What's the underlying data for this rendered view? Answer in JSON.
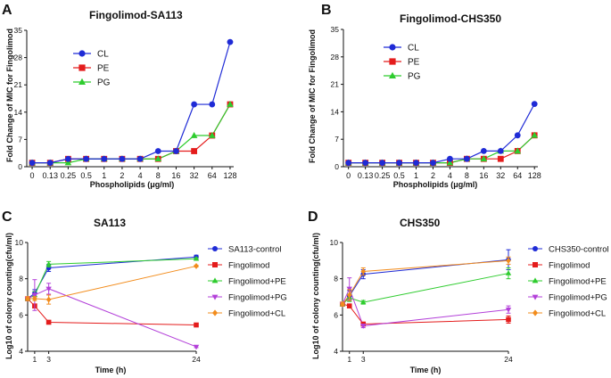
{
  "chart_data": [
    {
      "panel": "A",
      "type": "line",
      "title": "Fingolimod-SA113",
      "xlabel": "Phospholipids (μg/ml)",
      "ylabel": "Fold Change of MIC for Fingolimod",
      "categories": [
        "0",
        "0.13",
        "0.25",
        "0.5",
        "1",
        "2",
        "4",
        "8",
        "16",
        "32",
        "64",
        "128"
      ],
      "yticks": [
        0,
        7,
        14,
        21,
        28,
        35
      ],
      "ylim": [
        0,
        35
      ],
      "legend": "top-left",
      "series": [
        {
          "name": "CL",
          "color": "#1f2bd6",
          "marker": "circle",
          "values": [
            1,
            1,
            2,
            2,
            2,
            2,
            2,
            4,
            4,
            16,
            16,
            32
          ]
        },
        {
          "name": "PE",
          "color": "#e41c1c",
          "marker": "square",
          "values": [
            1,
            1,
            2,
            2,
            2,
            2,
            2,
            2,
            4,
            4,
            8,
            16
          ]
        },
        {
          "name": "PG",
          "color": "#2ecc2e",
          "marker": "triangle",
          "values": [
            1,
            1,
            1,
            2,
            2,
            2,
            2,
            2,
            4,
            8,
            8,
            16
          ]
        }
      ]
    },
    {
      "panel": "B",
      "type": "line",
      "title": "Fingolimod-CHS350",
      "xlabel": "Phospholipids (μg/ml)",
      "ylabel": "Fold Change of MIC for Fingolimod",
      "categories": [
        "0",
        "0.13",
        "0.25",
        "0.5",
        "1",
        "2",
        "4",
        "8",
        "16",
        "32",
        "64",
        "128"
      ],
      "yticks": [
        0,
        7,
        14,
        21,
        28,
        35
      ],
      "ylim": [
        0,
        35
      ],
      "legend": "top-left",
      "series": [
        {
          "name": "CL",
          "color": "#1f2bd6",
          "marker": "circle",
          "values": [
            1,
            1,
            1,
            1,
            1,
            1,
            2,
            2,
            4,
            4,
            8,
            16
          ]
        },
        {
          "name": "PE",
          "color": "#e41c1c",
          "marker": "square",
          "values": [
            1,
            1,
            1,
            1,
            1,
            1,
            1,
            2,
            2,
            2,
            4,
            8
          ]
        },
        {
          "name": "PG",
          "color": "#2ecc2e",
          "marker": "triangle",
          "values": [
            1,
            1,
            1,
            1,
            1,
            1,
            1,
            2,
            2,
            4,
            4,
            8
          ]
        }
      ]
    },
    {
      "panel": "C",
      "type": "line",
      "title": "SA113",
      "xlabel": "Time (h)",
      "ylabel": "Log10 of colony counting(cfu/ml)",
      "xticks": [
        1,
        3,
        24
      ],
      "xlim": [
        0,
        24
      ],
      "yticks": [
        4,
        6,
        8,
        10
      ],
      "ylim": [
        4,
        10
      ],
      "legend": "right",
      "series": [
        {
          "name": "SA113-control",
          "color": "#1f2bd6",
          "marker": "circle",
          "x": [
            0,
            1,
            3,
            24
          ],
          "values": [
            6.9,
            7.2,
            8.6,
            9.2
          ],
          "err": [
            0.1,
            0.2,
            0.2,
            0.1
          ]
        },
        {
          "name": "Fingolimod",
          "color": "#e41c1c",
          "marker": "square",
          "x": [
            0,
            1,
            3,
            24
          ],
          "values": [
            6.9,
            6.5,
            5.6,
            5.45
          ],
          "err": [
            0.1,
            0.1,
            0.1,
            0.05
          ]
        },
        {
          "name": "Fingolimod+PE",
          "color": "#2ecc2e",
          "marker": "triangle",
          "x": [
            0,
            1,
            3,
            24
          ],
          "values": [
            6.9,
            7.1,
            8.8,
            9.1
          ],
          "err": [
            0.1,
            0.2,
            0.15,
            0.05
          ]
        },
        {
          "name": "Fingolimod+PG",
          "color": "#b340d9",
          "marker": "triangle-down",
          "x": [
            0,
            1,
            3,
            24
          ],
          "values": [
            6.9,
            7.1,
            7.45,
            4.25
          ],
          "err": [
            0.1,
            0.85,
            0.3,
            0.05
          ]
        },
        {
          "name": "Fingolimod+CL",
          "color": "#f28c1c",
          "marker": "diamond",
          "x": [
            0,
            1,
            3,
            24
          ],
          "values": [
            6.9,
            6.9,
            6.85,
            8.7
          ],
          "err": [
            0.1,
            0.1,
            0.25,
            0.05
          ]
        }
      ]
    },
    {
      "panel": "D",
      "type": "line",
      "title": "CHS350",
      "xlabel": "Time (h)",
      "ylabel": "Log10 of colony counting(cfu/ml)",
      "xticks": [
        1,
        3,
        24
      ],
      "xlim": [
        0,
        24
      ],
      "yticks": [
        4,
        6,
        8,
        10
      ],
      "ylim": [
        4,
        10
      ],
      "legend": "right",
      "series": [
        {
          "name": "CHS350-control",
          "color": "#1f2bd6",
          "marker": "circle",
          "x": [
            0,
            1,
            3,
            24
          ],
          "values": [
            6.6,
            7.05,
            8.25,
            9.05
          ],
          "err": [
            0.1,
            0.3,
            0.25,
            0.55
          ]
        },
        {
          "name": "Fingolimod",
          "color": "#e41c1c",
          "marker": "square",
          "x": [
            0,
            1,
            3,
            24
          ],
          "values": [
            6.6,
            6.5,
            5.5,
            5.75
          ],
          "err": [
            0.1,
            0.1,
            0.1,
            0.2
          ]
        },
        {
          "name": "Fingolimod+PE",
          "color": "#2ecc2e",
          "marker": "triangle",
          "x": [
            0,
            1,
            3,
            24
          ],
          "values": [
            6.6,
            6.95,
            6.7,
            8.3
          ],
          "err": [
            0.1,
            0.2,
            0.1,
            0.3
          ]
        },
        {
          "name": "Fingolimod+PG",
          "color": "#b340d9",
          "marker": "triangle-down",
          "x": [
            0,
            1,
            3,
            24
          ],
          "values": [
            6.6,
            7.45,
            5.4,
            6.3
          ],
          "err": [
            0.1,
            0.6,
            0.1,
            0.2
          ]
        },
        {
          "name": "Fingolimod+CL",
          "color": "#f28c1c",
          "marker": "diamond",
          "x": [
            0,
            1,
            3,
            24
          ],
          "values": [
            6.6,
            7.1,
            8.4,
            9.0
          ],
          "err": [
            0.1,
            0.3,
            0.2,
            0.2
          ]
        }
      ]
    }
  ]
}
